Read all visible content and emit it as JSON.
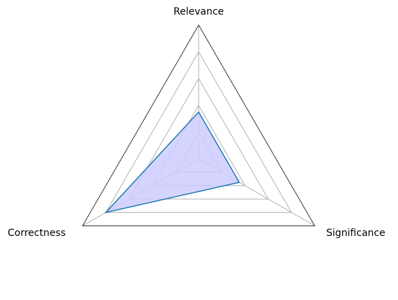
{
  "chart_data": {
    "type": "radar",
    "axes": [
      "Relevance",
      "Significance",
      "Correctness"
    ],
    "series": [
      {
        "values": [
          0.35,
          0.35,
          0.8
        ]
      }
    ],
    "rlim": [
      0,
      1
    ],
    "rings": [
      0.2,
      0.4,
      0.6,
      0.8
    ],
    "grid": true,
    "legend": "none",
    "colors": {
      "series_line": "#1f77b4",
      "series_fill": "#ccccff",
      "grid": "#b0b0b0",
      "outer_frame": "#333333"
    }
  }
}
